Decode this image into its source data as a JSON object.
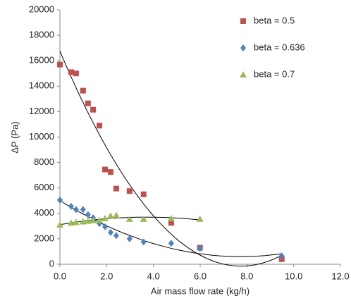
{
  "chart_data": {
    "type": "scatter",
    "x_label": "Air mass flow rate (kg/h)",
    "y_label": "ΔP (Pa)",
    "xlim": [
      0,
      12
    ],
    "ylim": [
      0,
      20000
    ],
    "xticks": [
      {
        "value": 0,
        "label": "0.0"
      },
      {
        "value": 2,
        "label": "2.0"
      },
      {
        "value": 4,
        "label": "4.0"
      },
      {
        "value": 6,
        "label": "6.0"
      },
      {
        "value": 8,
        "label": "8.0"
      },
      {
        "value": 10,
        "label": "10.0"
      },
      {
        "value": 12,
        "label": "12.0"
      }
    ],
    "yticks": [
      0,
      2000,
      4000,
      6000,
      8000,
      10000,
      12000,
      14000,
      16000,
      18000,
      20000
    ],
    "grid": false,
    "legend": "top-right",
    "trendline": "polynomial-2",
    "series": [
      {
        "name": "beta = 0.5",
        "color": "#c0504d",
        "marker": "square",
        "x": [
          0,
          0.48,
          0.69,
          0.99,
          1.2,
          1.42,
          1.69,
          1.93,
          2.17,
          2.41,
          2.98,
          3.58,
          4.76,
          5.99,
          9.49
        ],
        "values": [
          15700,
          15100,
          15000,
          13650,
          12650,
          12150,
          10900,
          7450,
          7250,
          5950,
          5750,
          5500,
          3250,
          1300,
          400
        ]
      },
      {
        "name": "beta = 0.636",
        "color": "#4f81bd",
        "marker": "diamond",
        "x": [
          0,
          0.48,
          0.69,
          0.99,
          1.2,
          1.42,
          1.69,
          1.93,
          2.17,
          2.41,
          2.98,
          3.58,
          4.76,
          5.99,
          9.49
        ],
        "values": [
          5050,
          4550,
          4300,
          4300,
          3900,
          3650,
          3200,
          2950,
          2500,
          2250,
          2000,
          1750,
          1650,
          1250,
          650
        ]
      },
      {
        "name": "beta = 0.7",
        "color": "#9bbb59",
        "marker": "triangle",
        "x": [
          0,
          0.48,
          0.69,
          0.99,
          1.2,
          1.42,
          1.69,
          1.93,
          2.17,
          2.41,
          2.98,
          3.58,
          4.76,
          5.99
        ],
        "values": [
          3100,
          3250,
          3300,
          3350,
          3400,
          3450,
          3450,
          3600,
          3800,
          3850,
          3550,
          3550,
          3600,
          3550
        ]
      }
    ]
  }
}
